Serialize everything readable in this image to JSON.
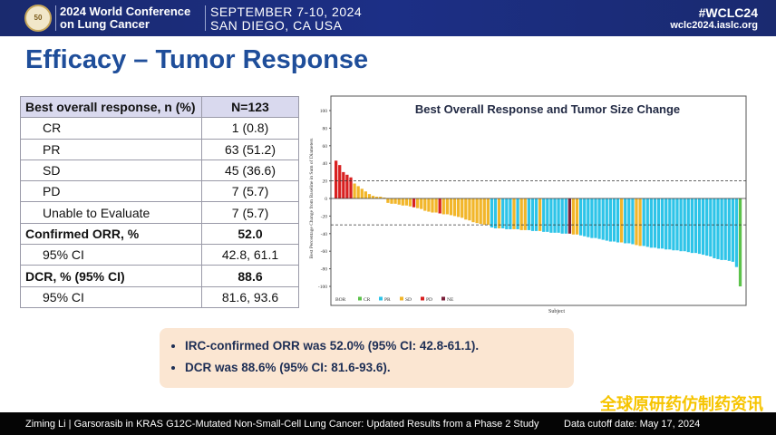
{
  "header": {
    "logo_text": "50 IASLC",
    "conference": [
      "2024 World Conference",
      "on Lung Cancer"
    ],
    "dates": [
      "SEPTEMBER 7-10, 2024",
      "SAN DIEGO, CA USA"
    ],
    "hashtag": "#WCLC24",
    "website": "wclc2024.iaslc.org"
  },
  "title": "Efficacy – Tumor Response",
  "table": {
    "header": [
      "Best overall response, n (%)",
      "N=123"
    ],
    "rows": [
      {
        "label": "CR",
        "value": "1 (0.8)",
        "bold": false
      },
      {
        "label": "PR",
        "value": "63 (51.2)",
        "bold": false
      },
      {
        "label": "SD",
        "value": "45 (36.6)",
        "bold": false
      },
      {
        "label": "PD",
        "value": "7 (5.7)",
        "bold": false
      },
      {
        "label": "Unable to Evaluate",
        "value": "7 (5.7)",
        "bold": false
      },
      {
        "label": "Confirmed ORR, %",
        "value": "52.0",
        "bold": true
      },
      {
        "label": "95% CI",
        "value": "42.8, 61.1",
        "bold": false
      },
      {
        "label": "DCR, % (95% CI)",
        "value": "88.6",
        "bold": true
      },
      {
        "label": "95% CI",
        "value": "81.6, 93.6",
        "bold": false
      }
    ]
  },
  "chart_data": {
    "type": "bar",
    "title": "Best Overall Response and Tumor Size Change",
    "xlabel": "Subject",
    "ylabel": "Best Percentage Change from Baseline in Sum of Diameters",
    "ylim": [
      -110,
      110
    ],
    "yticks": [
      100,
      80,
      60,
      40,
      20,
      0,
      -20,
      -40,
      -60,
      -80,
      -100
    ],
    "reference_lines": [
      20,
      -30
    ],
    "legend": {
      "title": "BOR",
      "placement": "bottom-left",
      "entries": [
        "CR",
        "PR",
        "SD",
        "PD",
        "NE"
      ]
    },
    "colors": {
      "CR": "#5cc24a",
      "PR": "#2ec4e8",
      "SD": "#f2b62a",
      "PD": "#d82020",
      "NE": "#7a1f3a"
    },
    "values": [
      43,
      38,
      30,
      27,
      24,
      17,
      14,
      11,
      8,
      5,
      3,
      2,
      2,
      1,
      -5,
      -6,
      -6,
      -7,
      -8,
      -8,
      -9,
      -10,
      -11,
      -12,
      -14,
      -15,
      -16,
      -16,
      -17,
      -18,
      -18,
      -19,
      -20,
      -21,
      -22,
      -24,
      -25,
      -27,
      -28,
      -29,
      -30,
      -30,
      -33,
      -34,
      -34,
      -34,
      -35,
      -35,
      -35,
      -35,
      -36,
      -36,
      -36,
      -37,
      -37,
      -37,
      -38,
      -38,
      -39,
      -39,
      -39,
      -40,
      -40,
      -40,
      -41,
      -41,
      -42,
      -43,
      -44,
      -45,
      -45,
      -46,
      -47,
      -48,
      -49,
      -49,
      -50,
      -50,
      -51,
      -51,
      -52,
      -53,
      -54,
      -54,
      -55,
      -56,
      -56,
      -57,
      -57,
      -58,
      -58,
      -59,
      -59,
      -60,
      -60,
      -61,
      -62,
      -62,
      -63,
      -64,
      -65,
      -66,
      -68,
      -69,
      -70,
      -70,
      -71,
      -72,
      -78,
      -100
    ],
    "bor": [
      "PD",
      "PD",
      "PD",
      "PD",
      "PD",
      "SD",
      "SD",
      "SD",
      "SD",
      "SD",
      "SD",
      "SD",
      "SD",
      "SD",
      "SD",
      "SD",
      "SD",
      "SD",
      "SD",
      "SD",
      "SD",
      "PD",
      "SD",
      "SD",
      "SD",
      "SD",
      "SD",
      "SD",
      "PD",
      "SD",
      "SD",
      "SD",
      "SD",
      "SD",
      "SD",
      "SD",
      "SD",
      "SD",
      "SD",
      "SD",
      "SD",
      "SD",
      "PR",
      "PR",
      "SD",
      "PR",
      "PR",
      "PR",
      "SD",
      "PR",
      "SD",
      "SD",
      "PR",
      "PR",
      "PR",
      "SD",
      "PR",
      "PR",
      "PR",
      "PR",
      "PR",
      "PR",
      "PR",
      "NE",
      "SD",
      "SD",
      "PR",
      "PR",
      "PR",
      "PR",
      "PR",
      "PR",
      "PR",
      "PR",
      "PR",
      "PR",
      "PR",
      "SD",
      "PR",
      "PR",
      "PR",
      "SD",
      "SD",
      "PR",
      "PR",
      "PR",
      "PR",
      "PR",
      "PR",
      "PR",
      "PR",
      "PR",
      "PR",
      "PR",
      "PR",
      "PR",
      "PR",
      "PR",
      "PR",
      "PR",
      "PR",
      "PR",
      "PR",
      "PR",
      "PR",
      "PR",
      "PR",
      "PR",
      "PR",
      "CR"
    ]
  },
  "callout": [
    "IRC-confirmed ORR was 52.0% (95% CI: 42.8-61.1).",
    "DCR was 88.6% (95% CI: 81.6-93.6)."
  ],
  "footer": {
    "citation": "Ziming Li | Garsorasib in KRAS G12C-Mutated Non-Small-Cell Lung Cancer: Updated Results from a Phase 2 Study",
    "cutoff": "Data cutoff date: May 17, 2024",
    "watermark": "全球原研药仿制药资讯"
  }
}
